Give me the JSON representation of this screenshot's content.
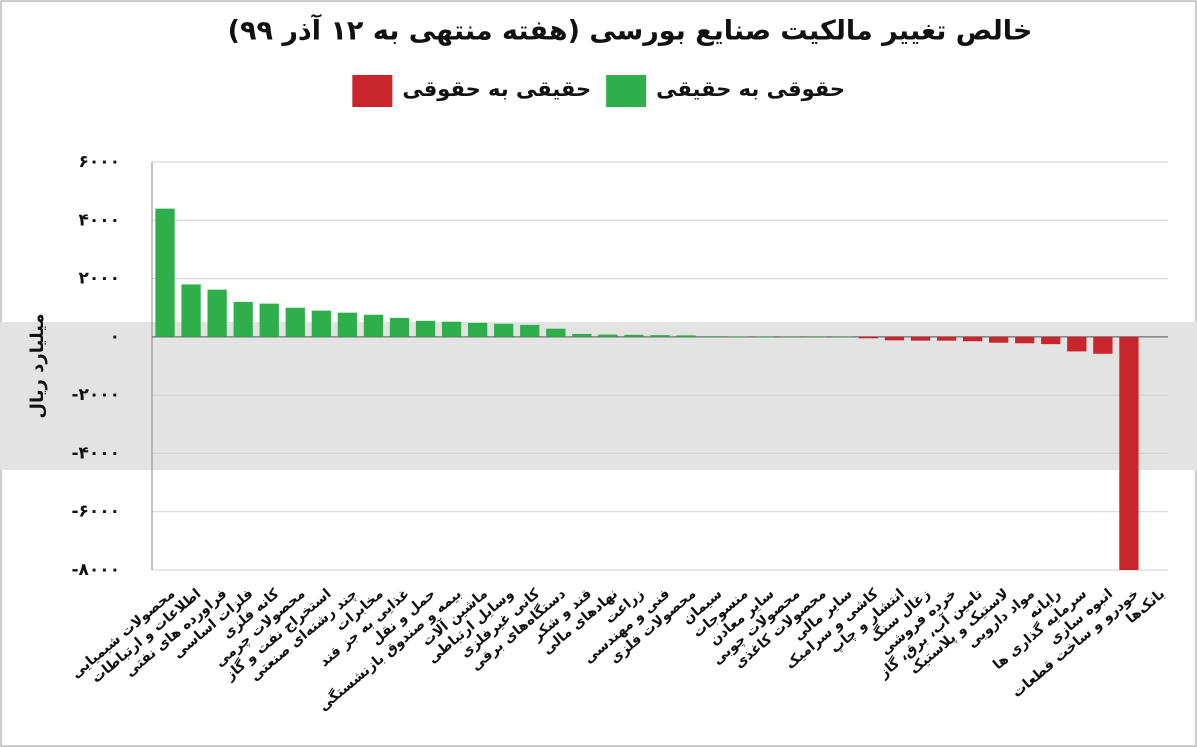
{
  "chart_data": {
    "type": "bar",
    "title": "خالص تغییر مالکیت صنایع بورسی (هفته منتهی به ۱۲ آذر ۹۹)",
    "y_label": "میلیارد ریال",
    "categories": [
      "محصولات شیمیایی",
      "اطلاعات و ارتباطات",
      "فراورده های نفتی",
      "فلزات اساسی",
      "کانه فلزی",
      "محصولات چرمی",
      "استخراج نفت و گاز",
      "چند رشته‌ای صنعتی",
      "مخابرات",
      "غذایی به جز قند",
      "حمل و نقل",
      "بیمه و صندوق بازنشستگی",
      "ماشین آلات",
      "وسایل ارتباطی",
      "کانی غیرفلزی",
      "دستگاه‌های برقی",
      "قند و شکر",
      "نهادهای مالی",
      "زراعت",
      "فنی و مهندسی",
      "محصولات فلزی",
      "سیمان",
      "منسوجات",
      "سایر معادن",
      "محصولات چوبی",
      "محصولات کاغذی",
      "سایر مالی",
      "کاشی و سرامیک",
      "انتشار و چاپ",
      "زغال سنگ",
      "خرده فروشی",
      "تامین آب، برق، گاز",
      "لاستیک و پلاستیک",
      "مواد دارویی",
      "رایانه",
      "سرمایه گذاری ها",
      "انبوه سازی",
      "خودرو و ساخت قطعات",
      "بانک‌ها"
    ],
    "series": [
      {
        "name": "حقوقی به حقیقی",
        "color": "#2eaf4c",
        "values": [
          4400,
          1800,
          1620,
          1200,
          1140,
          1000,
          900,
          830,
          760,
          650,
          550,
          520,
          480,
          450,
          410,
          280,
          100,
          80,
          70,
          60,
          50,
          20,
          10,
          5,
          5,
          5,
          5,
          null,
          null,
          null,
          null,
          null,
          null,
          null,
          null,
          null,
          null,
          null,
          null
        ]
      },
      {
        "name": "حقیقی به حقوقی",
        "color": "#c8262c",
        "values": [
          null,
          null,
          null,
          null,
          null,
          null,
          null,
          null,
          null,
          null,
          null,
          null,
          null,
          null,
          null,
          null,
          null,
          null,
          null,
          null,
          null,
          null,
          null,
          null,
          null,
          null,
          null,
          -50,
          -120,
          -130,
          -130,
          -150,
          -200,
          -220,
          -250,
          -500,
          -580,
          -8000,
          null
        ]
      }
    ],
    "ylim": [
      -8000,
      6000
    ],
    "yticks": [
      {
        "value": 6000,
        "label": "۶۰۰۰"
      },
      {
        "value": 4000,
        "label": "۴۰۰۰"
      },
      {
        "value": 2000,
        "label": "۲۰۰۰"
      },
      {
        "value": 0,
        "label": "۰"
      },
      {
        "value": -2000,
        "label": "-۲۰۰۰"
      },
      {
        "value": -4000,
        "label": "-۴۰۰۰"
      },
      {
        "value": -6000,
        "label": "-۶۰۰۰"
      },
      {
        "value": -8000,
        "label": "-۸۰۰۰"
      }
    ],
    "grid": true
  }
}
